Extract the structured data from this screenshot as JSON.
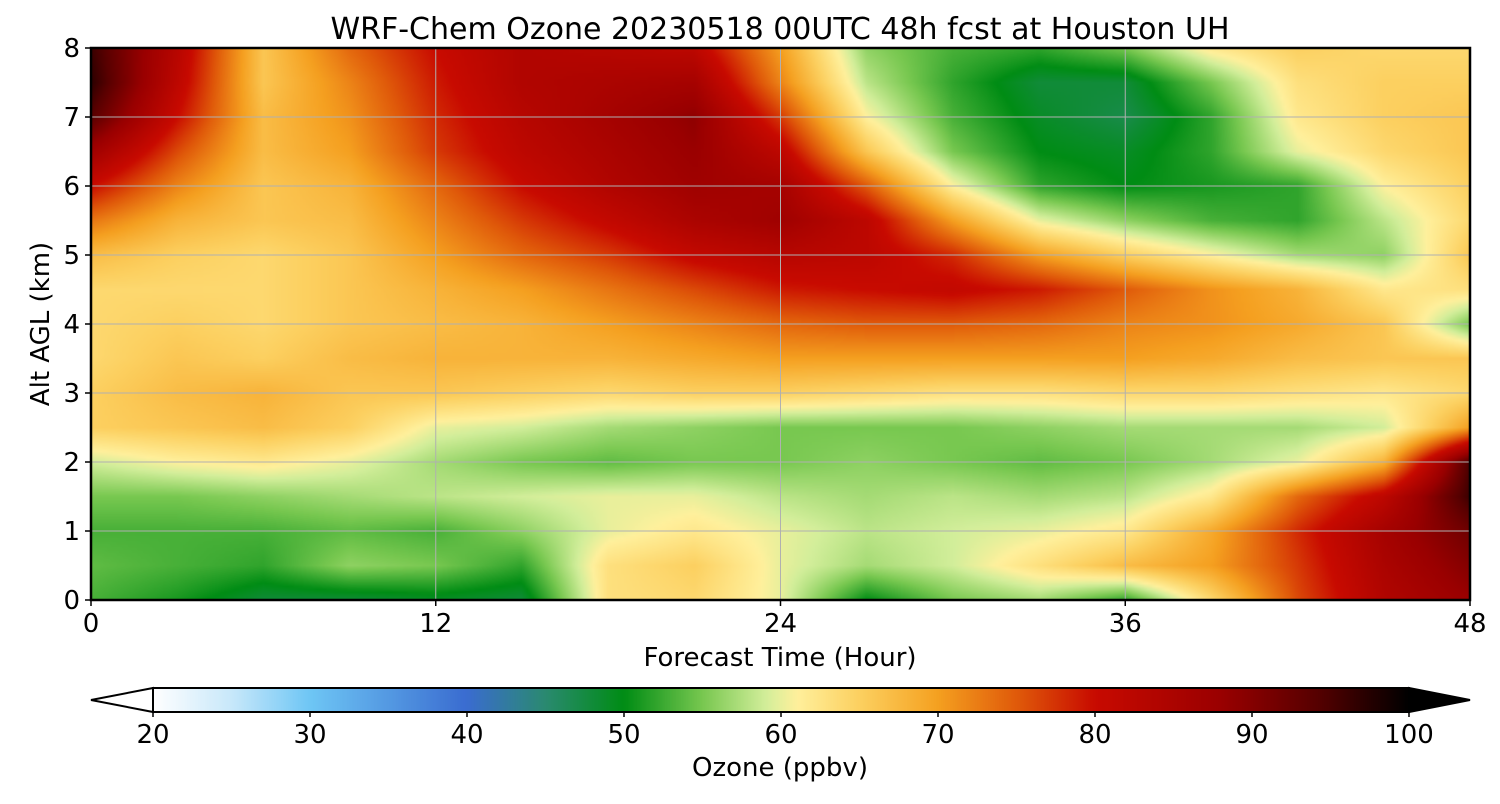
{
  "chart_data": {
    "type": "heatmap",
    "title": "WRF-Chem Ozone  20230518 00UTC 48h fcst at Houston UH",
    "xlabel": "Forecast Time (Hour)",
    "ylabel": "Alt AGL (km)",
    "xlim": [
      0,
      48
    ],
    "ylim": [
      0,
      8
    ],
    "xticks": [
      0,
      12,
      24,
      36,
      48
    ],
    "yticks": [
      0,
      1,
      2,
      3,
      4,
      5,
      6,
      7,
      8
    ],
    "grid": true,
    "colorbar": {
      "label": "Ozone  (ppbv)",
      "min": 20,
      "max": 100,
      "ticks": [
        20,
        30,
        40,
        50,
        60,
        70,
        80,
        90,
        100
      ],
      "extend": "both",
      "orientation": "horizontal",
      "stops": [
        {
          "v": 20,
          "c": "#ffffff"
        },
        {
          "v": 25,
          "c": "#c8e8fa"
        },
        {
          "v": 30,
          "c": "#6ec6f5"
        },
        {
          "v": 40,
          "c": "#3a6cd0"
        },
        {
          "v": 45,
          "c": "#2a8a70"
        },
        {
          "v": 50,
          "c": "#008c14"
        },
        {
          "v": 55,
          "c": "#78c850"
        },
        {
          "v": 59,
          "c": "#d2ee9a"
        },
        {
          "v": 61,
          "c": "#fff09c"
        },
        {
          "v": 65,
          "c": "#fcd060"
        },
        {
          "v": 70,
          "c": "#f5a020"
        },
        {
          "v": 75,
          "c": "#e05a0a"
        },
        {
          "v": 80,
          "c": "#c80a00"
        },
        {
          "v": 88,
          "c": "#9a0000"
        },
        {
          "v": 94,
          "c": "#580000"
        },
        {
          "v": 100,
          "c": "#000000"
        }
      ]
    },
    "hours": [
      0,
      3,
      6,
      9,
      12,
      15,
      18,
      21,
      24,
      27,
      30,
      33,
      36,
      39,
      42,
      45,
      48
    ],
    "altitudes_km": [
      0,
      0.5,
      1,
      1.5,
      2,
      2.5,
      3,
      3.5,
      4,
      4.5,
      5,
      5.5,
      6,
      6.5,
      7,
      7.5,
      8
    ],
    "values": [
      [
        53,
        51,
        48,
        48,
        49,
        48,
        63,
        64,
        60,
        50,
        55,
        57,
        52,
        64,
        76,
        84,
        88
      ],
      [
        54,
        53,
        52,
        56,
        55,
        52,
        63,
        65,
        60,
        57,
        59,
        63,
        67,
        70,
        77,
        85,
        90
      ],
      [
        53,
        53,
        53,
        54,
        53,
        56,
        60,
        62,
        60,
        58,
        59,
        60,
        62,
        69,
        78,
        86,
        92
      ],
      [
        55,
        55,
        56,
        57,
        58,
        59,
        60,
        60,
        58,
        57,
        58,
        57,
        58,
        62,
        74,
        82,
        96
      ],
      [
        59,
        61,
        62,
        60,
        57,
        55,
        54,
        55,
        55,
        56,
        55,
        54,
        55,
        57,
        60,
        68,
        95
      ],
      [
        65,
        66,
        67,
        65,
        60,
        59,
        57,
        56,
        55,
        55,
        55,
        56,
        57,
        57,
        57,
        59,
        70
      ],
      [
        65,
        67,
        68,
        66,
        66,
        65,
        64,
        65,
        65,
        64,
        63,
        63,
        64,
        64,
        63,
        62,
        64
      ],
      [
        64,
        66,
        65,
        67,
        68,
        68,
        68,
        69,
        70,
        70,
        70,
        70,
        70,
        69,
        67,
        66,
        66
      ],
      [
        64,
        65,
        64,
        66,
        67,
        68,
        70,
        72,
        74,
        75,
        75,
        74,
        72,
        71,
        69,
        66,
        55
      ],
      [
        64,
        64,
        64,
        66,
        68,
        70,
        73,
        76,
        79,
        80,
        81,
        79,
        75,
        71,
        68,
        62,
        63
      ],
      [
        67,
        65,
        64,
        66,
        70,
        74,
        77,
        81,
        83,
        82,
        78,
        70,
        65,
        61,
        57,
        56,
        66
      ],
      [
        73,
        68,
        66,
        67,
        72,
        77,
        81,
        85,
        87,
        82,
        70,
        60,
        56,
        53,
        52,
        58,
        64
      ],
      [
        80,
        72,
        66,
        68,
        74,
        80,
        84,
        87,
        86,
        75,
        61,
        52,
        50,
        51,
        52,
        61,
        65
      ],
      [
        87,
        76,
        67,
        70,
        77,
        82,
        85,
        88,
        82,
        66,
        55,
        50,
        49,
        52,
        60,
        64,
        66
      ],
      [
        94,
        80,
        67,
        71,
        78,
        83,
        86,
        89,
        77,
        61,
        53,
        49,
        47,
        52,
        62,
        65,
        66
      ],
      [
        97,
        82,
        66,
        72,
        79,
        84,
        85,
        86,
        72,
        58,
        52,
        48,
        48,
        55,
        63,
        65,
        65
      ],
      [
        96,
        83,
        66,
        74,
        80,
        84,
        83,
        82,
        70,
        56,
        53,
        52,
        55,
        62,
        65,
        64,
        64
      ]
    ]
  }
}
